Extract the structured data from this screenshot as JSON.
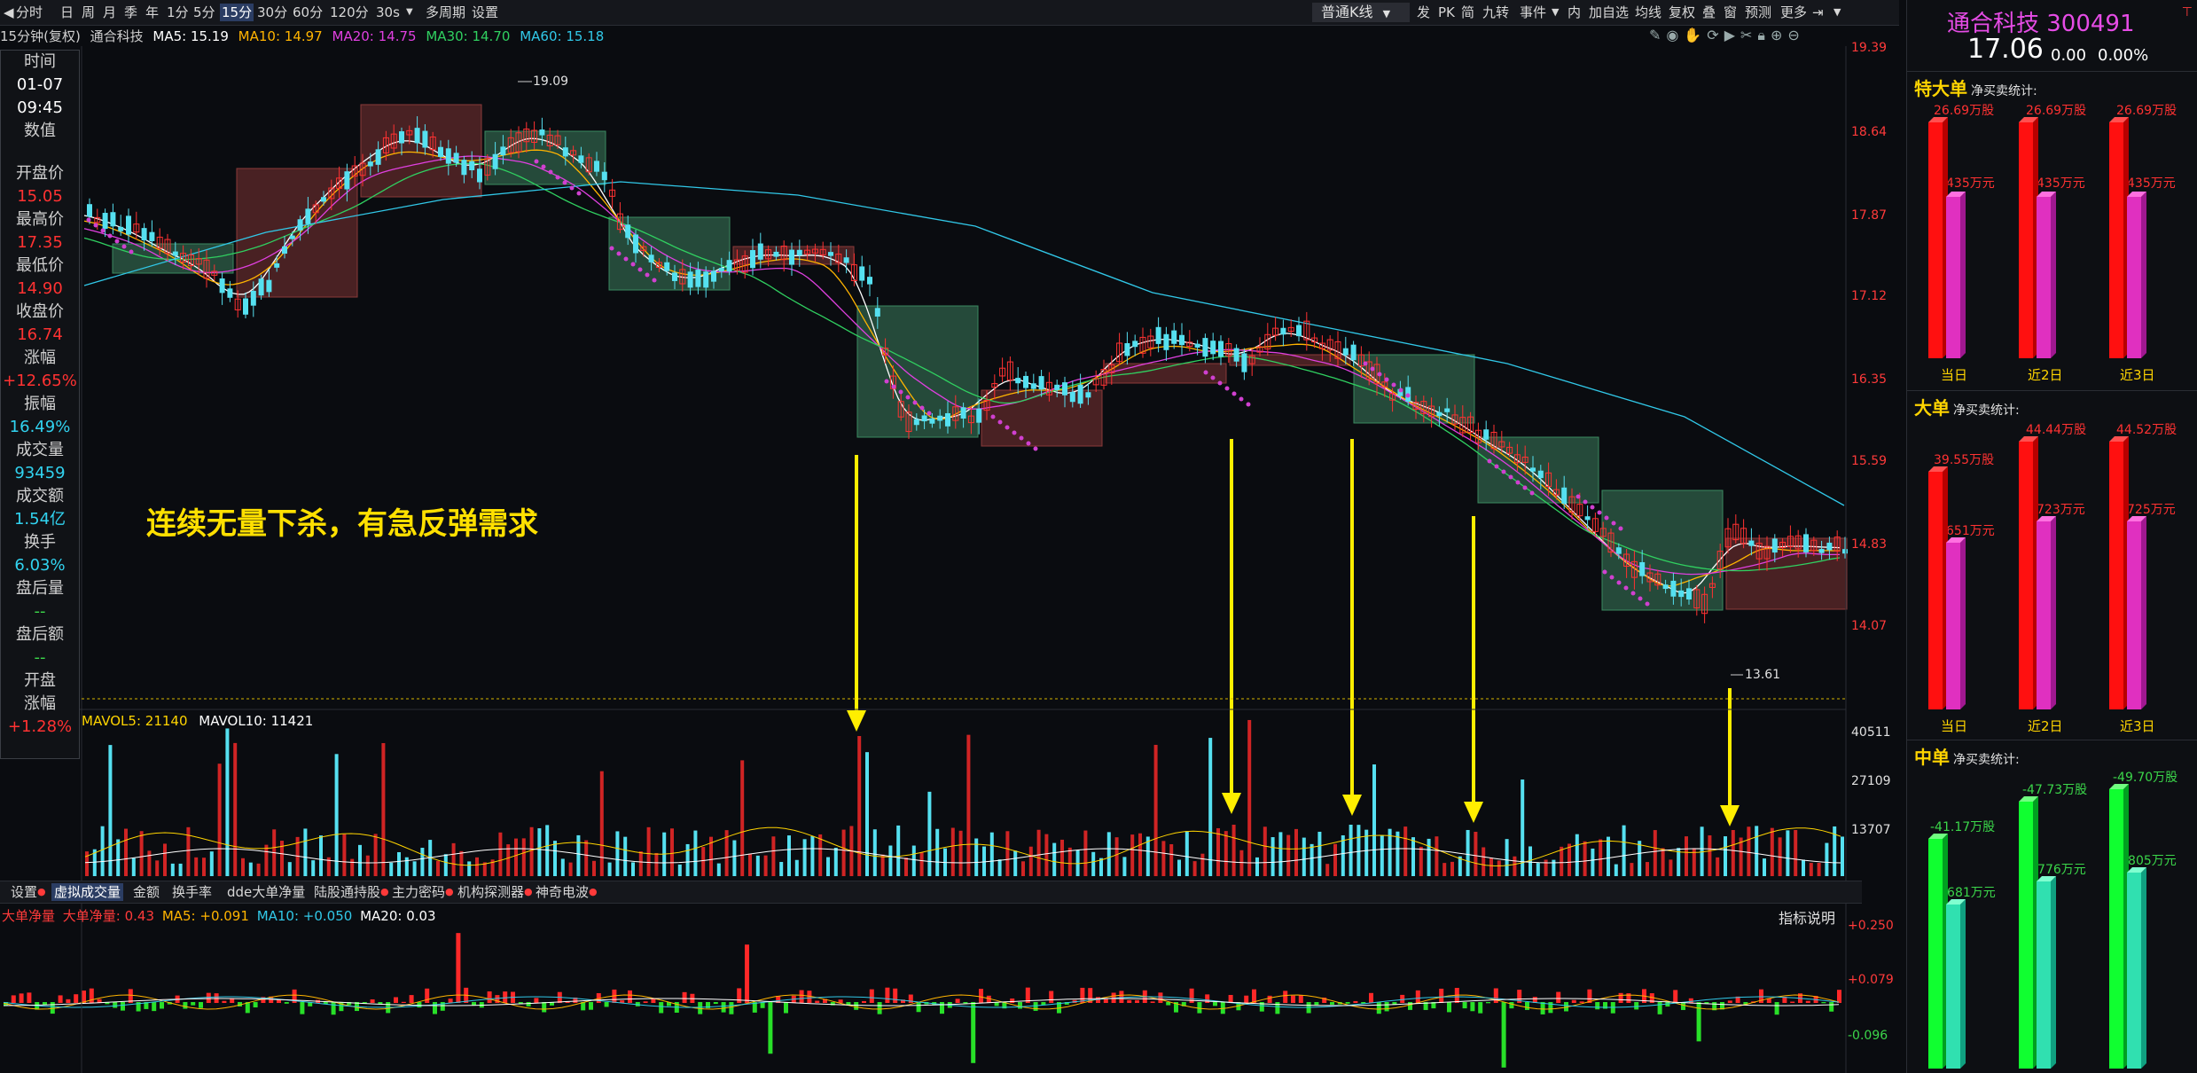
{
  "toolbar": {
    "left_items": [
      "分时",
      "日",
      "周",
      "月",
      "季",
      "年",
      "1分",
      "5分",
      "15分",
      "30分",
      "60分",
      "120分",
      "30s",
      "多周期",
      "设置"
    ],
    "active_item": "15分",
    "kline_type": "普通K线",
    "right_items": [
      "发",
      "PK",
      "简",
      "九转",
      "事件",
      "内",
      "加自选",
      "均线",
      "复权",
      "叠",
      "窗",
      "预测",
      "更多"
    ]
  },
  "infoline": {
    "period": "15分钟(复权)",
    "name": "通合科技",
    "ma5": "MA5: 15.19",
    "ma10": "MA10: 14.97",
    "ma20": "MA20: 14.75",
    "ma30": "MA30: 14.70",
    "ma60": "MA60: 15.18"
  },
  "left_panel": {
    "time_label": "时间",
    "date": "01-07",
    "time": "09:45",
    "value_label": "数值",
    "items": [
      {
        "label": "开盘价",
        "value": "15.05",
        "color": "red"
      },
      {
        "label": "最高价",
        "value": "17.35",
        "color": "red"
      },
      {
        "label": "最低价",
        "value": "14.90",
        "color": "red"
      },
      {
        "label": "收盘价",
        "value": "16.74",
        "color": "red"
      },
      {
        "label": "涨幅",
        "value": "+12.65%",
        "color": "red"
      },
      {
        "label": "振幅",
        "value": "16.49%",
        "color": "cyan"
      },
      {
        "label": "成交量",
        "value": "93459",
        "color": "cyan"
      },
      {
        "label": "成交额",
        "value": "1.54亿",
        "color": "cyan"
      },
      {
        "label": "换手",
        "value": "6.03%",
        "color": "cyan"
      },
      {
        "label": "盘后量",
        "value": "--",
        "color": "green"
      },
      {
        "label": "盘后额",
        "value": "--",
        "color": "green"
      }
    ],
    "open_label": "开盘",
    "open_label2": "涨幅",
    "open_value": "+1.28%"
  },
  "price_axis": [
    "19.39",
    "18.64",
    "17.87",
    "17.12",
    "16.35",
    "15.59",
    "14.83",
    "14.07"
  ],
  "high_marker": "19.09",
  "low_marker": "13.61",
  "annotation": "连续无量下杀，有急反弹需求",
  "volume": {
    "mavol5": "MAVOL5: 21140",
    "mavol10": "MAVOL10: 11421",
    "axis": [
      "40511",
      "27109",
      "13707"
    ]
  },
  "tabs": [
    "设置",
    "虚拟成交量",
    "金额",
    "换手率",
    "dde大单净量",
    "陆股通持股",
    "主力密码",
    "机构探测器",
    "神奇电波"
  ],
  "active_tab": "虚拟成交量",
  "indicator": {
    "name": "大单净量",
    "value": "大单净量: 0.43",
    "ma5": "MA5: +0.091",
    "ma10": "MA10: +0.050",
    "ma20": "MA20: 0.03",
    "help": "指标说明",
    "axis": [
      "+0.250",
      "+0.079",
      "-0.096"
    ]
  },
  "right_panel": {
    "stock_name": "通合科技 300491",
    "price": "17.06",
    "change": "0.00",
    "change_pct": "0.00%",
    "sections": [
      {
        "title": "特大单",
        "subtitle": "净买卖统计:",
        "periods": [
          "当日",
          "近2日",
          "近3日"
        ],
        "volume_labels": [
          "26.69万股",
          "26.69万股",
          "26.69万股"
        ],
        "amount_labels": [
          "435万元",
          "435万元",
          "435万元"
        ]
      },
      {
        "title": "大单",
        "subtitle": "净买卖统计:",
        "periods": [
          "当日",
          "近2日",
          "近3日"
        ],
        "volume_labels": [
          "39.55万股",
          "44.44万股",
          "44.52万股"
        ],
        "amount_labels": [
          "651万元",
          "723万元",
          "725万元"
        ]
      },
      {
        "title": "中单",
        "subtitle": "净买卖统计:",
        "periods": [],
        "volume_labels": [
          "-41.17万股",
          "-47.73万股",
          "-49.70万股"
        ],
        "amount_labels": [
          "-681万元",
          "-776万元",
          "-805万元"
        ]
      }
    ]
  },
  "colors": {
    "up": "#ff3232",
    "down": "#55e0f0",
    "ma5": "#ffffff",
    "ma10": "#ffb400",
    "ma20": "#e040e0",
    "ma30": "#30d060",
    "ma60": "#31c8e8",
    "arrow": "#ffee00"
  }
}
